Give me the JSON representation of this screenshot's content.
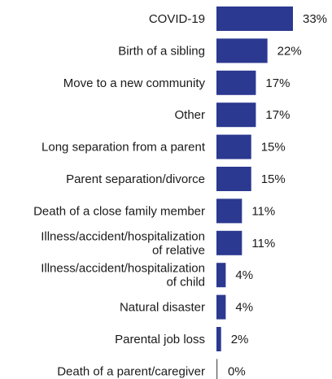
{
  "chart_data": {
    "type": "bar",
    "orientation": "horizontal",
    "categories": [
      "COVID-19",
      "Birth of a sibling",
      "Move to a new community",
      "Other",
      "Long separation from a parent",
      "Parent separation/divorce",
      "Death of a close family member",
      "Illness/accident/hospitalization of relative",
      "Illness/accident/hospitalization of child",
      "Natural disaster",
      "Parental job loss",
      "Death of a parent/caregiver"
    ],
    "values": [
      33,
      22,
      17,
      17,
      15,
      15,
      11,
      11,
      4,
      4,
      2,
      0
    ],
    "value_labels": [
      "33%",
      "22%",
      "17%",
      "17%",
      "15%",
      "15%",
      "11%",
      "11%",
      "4%",
      "4%",
      "2%",
      "0%"
    ],
    "xlim": [
      0,
      35
    ],
    "grid": false,
    "bar_color": "#2b3990"
  }
}
